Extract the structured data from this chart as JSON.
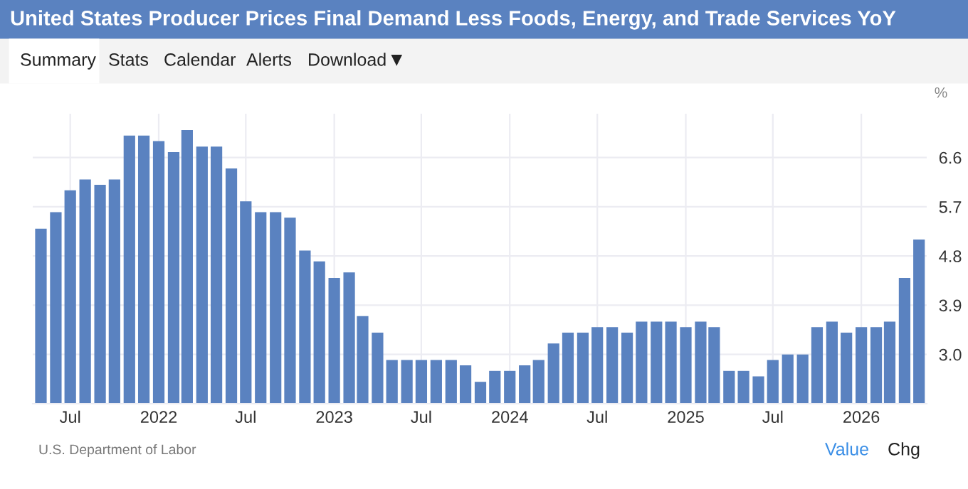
{
  "chart_data": {
    "type": "bar",
    "title": "United States Producer Prices Final Demand Less Foods, Energy, and Trade Services YoY",
    "ylabel": "%",
    "annotations": [
      "Summary",
      "Stats",
      "Calendar",
      "Alerts",
      "Download",
      "U.S. Department of Labor",
      "Value",
      "Chg"
    ],
    "x": [
      "2021-05",
      "2021-06",
      "2021-07",
      "2021-08",
      "2021-09",
      "2021-10",
      "2021-11",
      "2021-12",
      "2022-01",
      "2022-02",
      "2022-03",
      "2022-04",
      "2022-05",
      "2022-06",
      "2022-07",
      "2022-08",
      "2022-09",
      "2022-10",
      "2022-11",
      "2022-12",
      "2023-01",
      "2023-02",
      "2023-03",
      "2023-04",
      "2023-05",
      "2023-06",
      "2023-07",
      "2023-08",
      "2023-09",
      "2023-10",
      "2023-11",
      "2023-12",
      "2024-01",
      "2024-02",
      "2024-03",
      "2024-04",
      "2024-05",
      "2024-06",
      "2024-07",
      "2024-08",
      "2024-09",
      "2024-10",
      "2024-11",
      "2024-12",
      "2025-01",
      "2025-02",
      "2025-03",
      "2025-04",
      "2025-05",
      "2025-06",
      "2025-07",
      "2025-08",
      "2025-09",
      "2025-10",
      "2025-11",
      "2025-12",
      "2026-01",
      "2026-02",
      "2026-03",
      "2026-04",
      "2026-05"
    ],
    "values": [
      5.3,
      5.6,
      6.0,
      6.2,
      6.1,
      6.2,
      7.0,
      7.0,
      6.9,
      6.7,
      7.1,
      6.8,
      6.8,
      6.4,
      5.8,
      5.6,
      5.6,
      5.5,
      4.9,
      4.7,
      4.4,
      4.5,
      3.7,
      3.4,
      2.9,
      2.9,
      2.9,
      2.9,
      2.9,
      2.8,
      2.5,
      2.7,
      2.7,
      2.8,
      2.9,
      3.2,
      3.4,
      3.4,
      3.5,
      3.5,
      3.4,
      3.6,
      3.6,
      3.6,
      3.5,
      3.6,
      3.5,
      2.7,
      2.7,
      2.6,
      2.9,
      3.0,
      3.0,
      3.5,
      3.6,
      3.4,
      3.5,
      3.5,
      3.6,
      4.4,
      5.1
    ],
    "color": "#5a82c0",
    "xlim": [
      "2021-04-14",
      "2026-05-17"
    ],
    "xticks": [
      {
        "value": "2021-07-01",
        "label": "Jul"
      },
      {
        "value": "2022-01-01",
        "label": "2022"
      },
      {
        "value": "2022-07-01",
        "label": "Jul"
      },
      {
        "value": "2023-01-01",
        "label": "2023"
      },
      {
        "value": "2023-07-01",
        "label": "Jul"
      },
      {
        "value": "2024-01-01",
        "label": "2024"
      },
      {
        "value": "2024-07-01",
        "label": "Jul"
      },
      {
        "value": "2025-01-01",
        "label": "2025"
      },
      {
        "value": "2025-07-01",
        "label": "Jul"
      },
      {
        "value": "2026-01-01",
        "label": "2026"
      }
    ],
    "ylim": [
      2.1,
      7.4
    ],
    "yticks": [
      {
        "value": 3.0,
        "label": "3.0"
      },
      {
        "value": 3.9,
        "label": "3.9"
      },
      {
        "value": 4.8,
        "label": "4.8"
      },
      {
        "value": 5.7,
        "label": "5.7"
      },
      {
        "value": 6.6,
        "label": "6.6"
      }
    ],
    "grid": true,
    "legend": false
  }
}
